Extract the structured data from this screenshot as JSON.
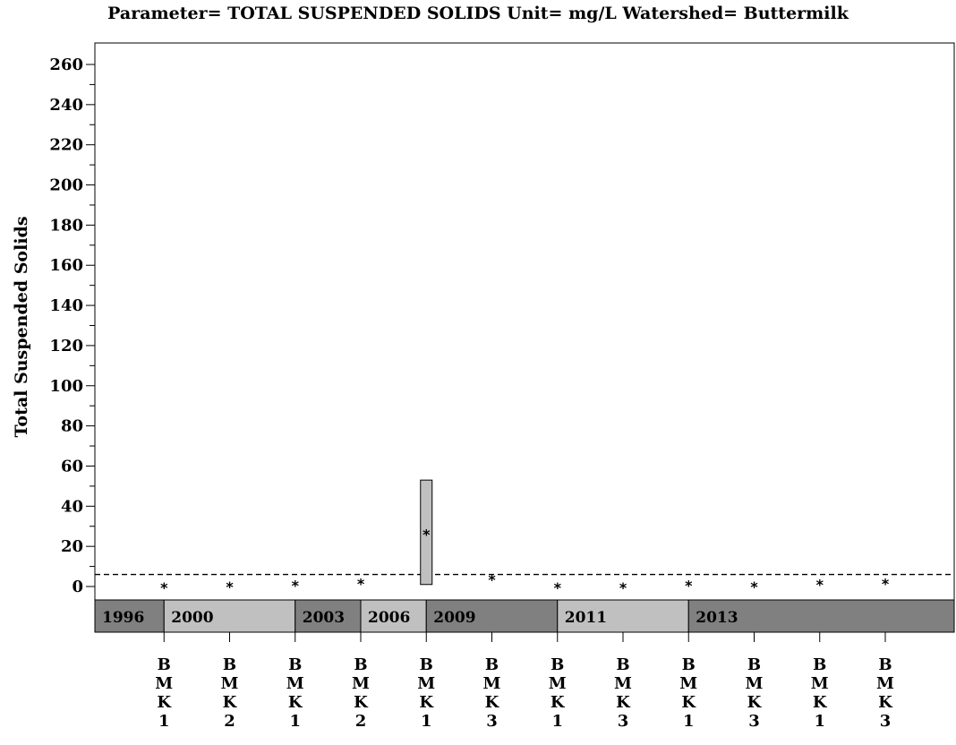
{
  "chart_data": {
    "type": "box",
    "title": "Parameter= TOTAL SUSPENDED SOLIDS Unit= mg/L Watershed= Buttermilk",
    "ylabel": "Total Suspended Solids",
    "xlabel": "",
    "ylim": [
      0,
      260
    ],
    "yticks": [
      0,
      20,
      40,
      60,
      80,
      100,
      120,
      140,
      160,
      180,
      200,
      220,
      240,
      260
    ],
    "yticks_minor_step": 10,
    "reference_line": 6,
    "grid": false,
    "categories": [
      "BMK1",
      "BMK2",
      "BMK1",
      "BMK2",
      "BMK1",
      "BMK3",
      "BMK1",
      "BMK3",
      "BMK1",
      "BMK3",
      "BMK1",
      "BMK3"
    ],
    "category_labels": [
      [
        "B",
        "M",
        "K",
        "1"
      ],
      [
        "B",
        "M",
        "K",
        "2"
      ],
      [
        "B",
        "M",
        "K",
        "1"
      ],
      [
        "B",
        "M",
        "K",
        "2"
      ],
      [
        "B",
        "M",
        "K",
        "1"
      ],
      [
        "B",
        "M",
        "K",
        "3"
      ],
      [
        "B",
        "M",
        "K",
        "1"
      ],
      [
        "B",
        "M",
        "K",
        "3"
      ],
      [
        "B",
        "M",
        "K",
        "1"
      ],
      [
        "B",
        "M",
        "K",
        "3"
      ],
      [
        "B",
        "M",
        "K",
        "1"
      ],
      [
        "B",
        "M",
        "K",
        "3"
      ]
    ],
    "year_bands": [
      {
        "label": "1996",
        "start_index": 0,
        "end_index": 1,
        "color": "#808080"
      },
      {
        "label": "2000",
        "start_index": 1,
        "end_index": 3,
        "color": "#c0c0c0"
      },
      {
        "label": "2003",
        "start_index": 3,
        "end_index": 4,
        "color": "#808080"
      },
      {
        "label": "2006",
        "start_index": 4,
        "end_index": 5,
        "color": "#c0c0c0"
      },
      {
        "label": "2009",
        "start_index": 5,
        "end_index": 7,
        "color": "#808080"
      },
      {
        "label": "2011",
        "start_index": 7,
        "end_index": 9,
        "color": "#c0c0c0"
      },
      {
        "label": "2013",
        "start_index": 9,
        "end_index": 12,
        "color": "#808080"
      }
    ],
    "boxes": [
      {
        "category_index": 0,
        "mean": 0.5,
        "box": null
      },
      {
        "category_index": 1,
        "mean": 1.0,
        "box": null
      },
      {
        "category_index": 2,
        "mean": 1.5,
        "box": null
      },
      {
        "category_index": 3,
        "mean": 2.5,
        "box": null
      },
      {
        "category_index": 4,
        "mean": 27,
        "box": [
          1,
          53
        ]
      },
      {
        "category_index": 5,
        "mean": 4.5,
        "box": null
      },
      {
        "category_index": 6,
        "mean": 0.5,
        "box": null
      },
      {
        "category_index": 7,
        "mean": 0.5,
        "box": null
      },
      {
        "category_index": 8,
        "mean": 1.5,
        "box": null
      },
      {
        "category_index": 9,
        "mean": 1.0,
        "box": null
      },
      {
        "category_index": 10,
        "mean": 2.0,
        "box": null
      },
      {
        "category_index": 11,
        "mean": 2.5,
        "box": null
      }
    ],
    "colors": {
      "box_fill": "#c0c0c0",
      "band_dark": "#808080",
      "band_light": "#c0c0c0"
    }
  }
}
